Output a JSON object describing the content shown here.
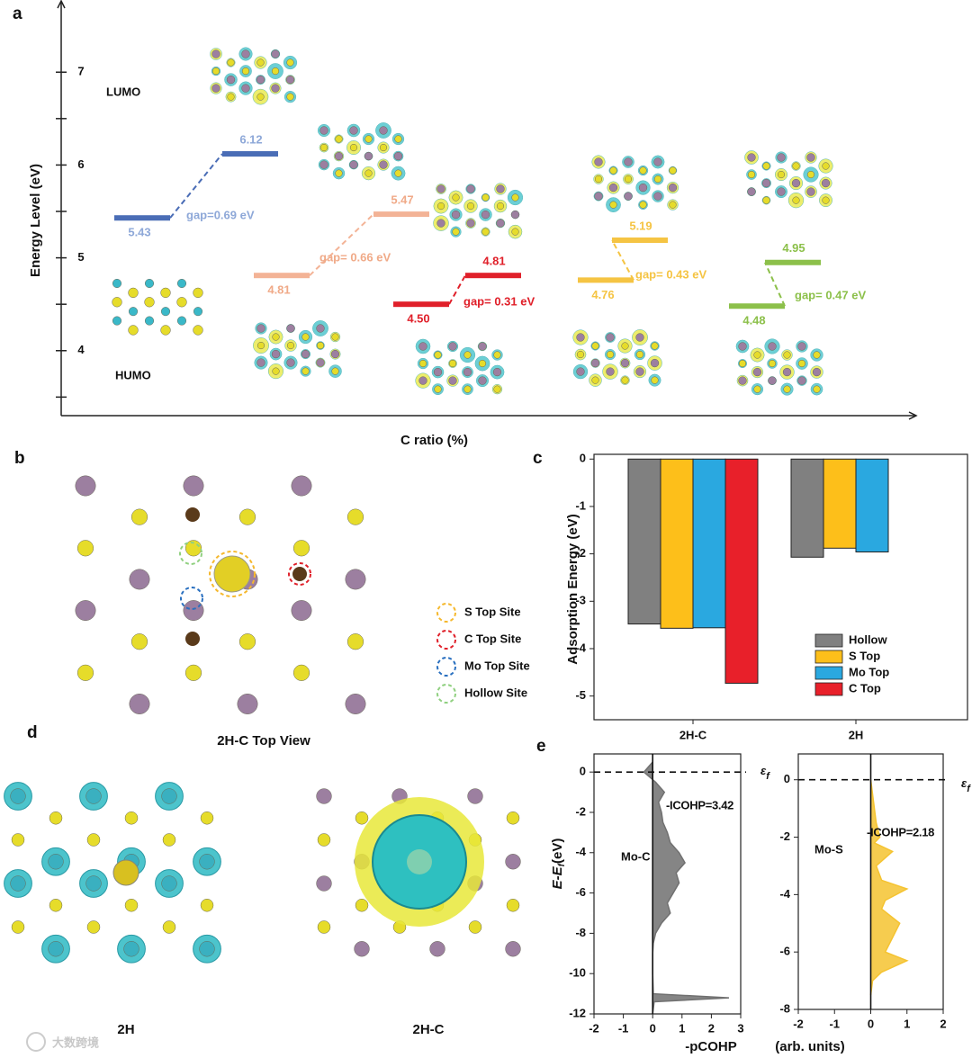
{
  "chart_data": [
    {
      "type": "energy-levels",
      "ylabel": "Energy Level (eV)",
      "xlabel": "C ratio (%)",
      "ylim": [
        3.3,
        7.7
      ],
      "yticks": [
        4,
        5,
        6,
        7
      ],
      "yticks_minor": [
        3.5,
        4.5,
        5.5,
        6.5
      ],
      "annotations": [
        "LUMO",
        "HUMO"
      ],
      "lower": {
        "values": [
          5.43,
          4.81,
          4.5,
          4.76,
          4.48
        ],
        "value_labels": [
          "5.43",
          "4.81",
          "4.50",
          "4.76",
          "4.48"
        ]
      },
      "upper": {
        "values": [
          6.12,
          5.47,
          4.81,
          5.19,
          4.95
        ],
        "value_labels": [
          "6.12",
          "5.47",
          "4.81",
          "5.19",
          "4.95"
        ]
      },
      "gap_labels": [
        "gap=0.69 eV",
        "gap= 0.66 eV",
        "gap= 0.31 eV",
        "gap= 0.43 eV",
        "gap= 0.47 eV"
      ],
      "colors": [
        "#4a6db6",
        "#f3b396",
        "#e0202a",
        "#f5c443",
        "#8cc04a"
      ],
      "label_colors": [
        "#8ea8d8",
        "#f0aa88",
        "#e0202a",
        "#f5c443",
        "#8cc04a"
      ]
    },
    {
      "type": "bar",
      "ylabel": "Adsorption Energy (eV)",
      "categories": [
        "2H-C",
        "2H"
      ],
      "series": [
        {
          "name": "Hollow",
          "color": "#808080",
          "values": [
            -3.48,
            -2.07
          ]
        },
        {
          "name": "S Top",
          "color": "#fdbf1a",
          "values": [
            -3.57,
            -1.88
          ]
        },
        {
          "name": "Mo Top",
          "color": "#2aa8e0",
          "values": [
            -3.56,
            -1.96
          ]
        },
        {
          "name": "C Top",
          "color": "#e8202a",
          "values": [
            -4.73,
            null
          ]
        }
      ],
      "ylim": [
        -5.5,
        0.1
      ],
      "yticks": [
        0,
        -1,
        -2,
        -3,
        -4,
        -5
      ],
      "legend": "lower right"
    },
    {
      "type": "area",
      "xlabel": "-pCOHP",
      "ylabel_parts": [
        "E-E",
        "f",
        "(eV)"
      ],
      "label": "Mo-C",
      "annotation": "-ICOHP=3.42",
      "fermi_parts": [
        "ε",
        "f"
      ],
      "color": "#707070",
      "xlim": [
        -2,
        3
      ],
      "xticks": [
        -2,
        -1,
        0,
        1,
        2,
        3
      ],
      "ylim": [
        -12,
        0.9
      ],
      "yticks": [
        0,
        -2,
        -4,
        -6,
        -8,
        -10,
        -12
      ],
      "energies": [
        0.5,
        0,
        -0.5,
        -1,
        -1.5,
        -2,
        -2.5,
        -3,
        -3.5,
        -4,
        -4.5,
        -5,
        -5.5,
        -6,
        -6.5,
        -7,
        -7.5,
        -8,
        -8.5,
        -9,
        -10,
        -11,
        -11.2,
        -11.4,
        -12
      ],
      "values": [
        0,
        -0.3,
        0.1,
        0.4,
        0.2,
        0.3,
        0.35,
        0.5,
        0.6,
        0.9,
        1.1,
        0.8,
        0.9,
        0.7,
        0.5,
        0.6,
        0.3,
        0.1,
        0.02,
        0,
        0,
        0.02,
        2.6,
        0.05,
        0
      ]
    },
    {
      "type": "area",
      "xlabel": "(arb. units)",
      "label": "Mo-S",
      "annotation": "-ICOHP=2.18",
      "fermi_parts": [
        "ε",
        "f"
      ],
      "color": "#f5c330",
      "xlim": [
        -2,
        2
      ],
      "xticks": [
        -2,
        -1,
        0,
        1,
        2
      ],
      "ylim": [
        -8,
        0.9
      ],
      "yticks": [
        0,
        -2,
        -4,
        -6,
        -8
      ],
      "energies": [
        0,
        -0.5,
        -1,
        -1.5,
        -2,
        -2.2,
        -2.5,
        -3,
        -3.5,
        -3.8,
        -4.2,
        -4.5,
        -5,
        -5.5,
        -6,
        -6.3,
        -6.7,
        -7,
        -7.5
      ],
      "values": [
        0,
        0.05,
        0.1,
        0.15,
        0.25,
        0.1,
        0.6,
        0.15,
        0.3,
        1.0,
        0.4,
        0.3,
        0.8,
        0.6,
        0.4,
        1.0,
        0.3,
        0.05,
        0
      ]
    }
  ],
  "figure": {
    "panel_labels": [
      "a",
      "b",
      "c",
      "d",
      "e"
    ],
    "panel_b": {
      "sites": [
        {
          "label": "S Top Site",
          "color": "#f5b82e"
        },
        {
          "label": "C Top Site",
          "color": "#e0202a"
        },
        {
          "label": "Mo Top Site",
          "color": "#2a70c0"
        },
        {
          "label": "Hollow Site",
          "color": "#90d080"
        }
      ],
      "caption": "2H-C Top View"
    },
    "panel_d": {
      "captions": [
        "2H",
        "2H-C"
      ]
    },
    "watermark": "大数跨境"
  }
}
